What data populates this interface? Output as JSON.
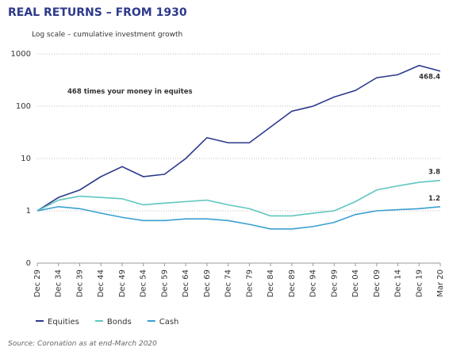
{
  "chart_data": {
    "type": "line",
    "title": "REAL RETURNS – FROM 1930",
    "subtitle": "Log scale – cumulative investment growth",
    "annotation": "468 times your money in equites",
    "source": "Source: Coronation as at end-March 2020",
    "log_scale": true,
    "grid": true,
    "legend": "bottom-left",
    "categories": [
      "Dec 29",
      "Dec 34",
      "Dec 39",
      "Dec 44",
      "Dec 49",
      "Dec 54",
      "Dec 59",
      "Dec 64",
      "Dec 69",
      "Dec 74",
      "Dec 79",
      "Dec 84",
      "Dec 89",
      "Dec 94",
      "Dec 99",
      "Dec 04",
      "Dec 09",
      "Dec 14",
      "Dec 19",
      "Mar 20"
    ],
    "ylim": [
      0.1,
      1000
    ],
    "yticks": [
      {
        "value": 0.1,
        "label": "0"
      },
      1,
      10,
      100,
      1000
    ],
    "series": [
      {
        "name": "Equities",
        "color": "#2d3a8c",
        "values": [
          1,
          1.8,
          2.5,
          4.5,
          7,
          4.5,
          5,
          10,
          25,
          20,
          20,
          40,
          80,
          100,
          150,
          200,
          350,
          400,
          600,
          468.4
        ]
      },
      {
        "name": "Bonds",
        "color": "#5fc6bf",
        "values": [
          1,
          1.6,
          1.9,
          1.8,
          1.7,
          1.3,
          1.4,
          1.5,
          1.6,
          1.3,
          1.1,
          0.8,
          0.8,
          0.9,
          1.0,
          1.5,
          2.5,
          3.0,
          3.5,
          3.8
        ]
      },
      {
        "name": "Cash",
        "color": "#3a9fd0",
        "values": [
          1,
          1.2,
          1.1,
          0.9,
          0.75,
          0.65,
          0.65,
          0.7,
          0.7,
          0.65,
          0.55,
          0.45,
          0.45,
          0.5,
          0.6,
          0.85,
          1.0,
          1.05,
          1.1,
          1.2
        ]
      }
    ]
  }
}
